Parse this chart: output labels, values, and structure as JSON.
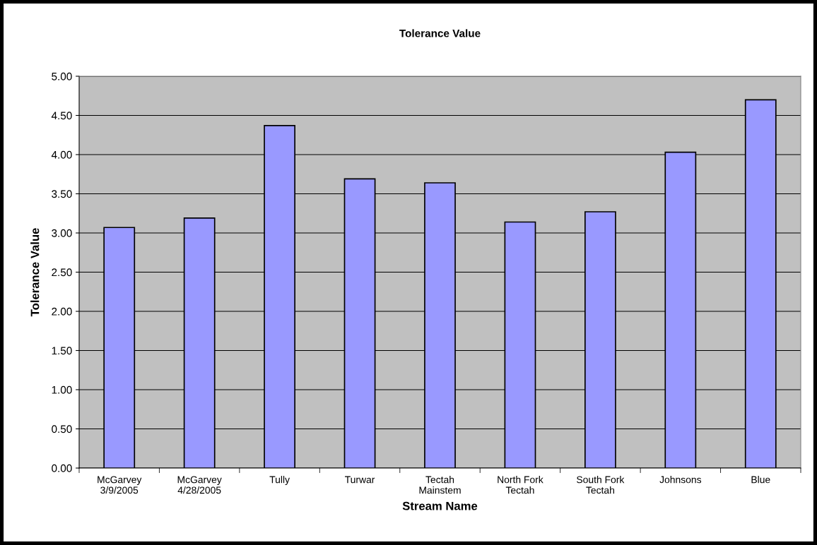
{
  "chart_data": {
    "type": "bar",
    "title": "Tolerance Value",
    "xlabel": "Stream Name",
    "ylabel": "Tolerance Value",
    "categories": [
      "McGarvey\n3/9/2005",
      "McGarvey\n4/28/2005",
      "Tully",
      "Turwar",
      "Tectah\nMainstem",
      "North Fork\nTectah",
      "South Fork\nTectah",
      "Johnsons",
      "Blue"
    ],
    "values": [
      3.07,
      3.19,
      4.37,
      3.69,
      3.64,
      3.14,
      3.27,
      4.03,
      4.7
    ],
    "color": "#9999ff",
    "ylim": [
      0,
      5
    ],
    "yticks": [
      {
        "value": 0,
        "label": "0.00"
      },
      {
        "value": 0.5,
        "label": "0.50"
      },
      {
        "value": 1,
        "label": "1.00"
      },
      {
        "value": 1.5,
        "label": "1.50"
      },
      {
        "value": 2,
        "label": "2.00"
      },
      {
        "value": 2.5,
        "label": "2.50"
      },
      {
        "value": 3,
        "label": "3.00"
      },
      {
        "value": 3.5,
        "label": "3.50"
      },
      {
        "value": 4,
        "label": "4.00"
      },
      {
        "value": 4.5,
        "label": "4.50"
      },
      {
        "value": 5,
        "label": "5.00"
      }
    ],
    "grid": "y",
    "legend": false
  }
}
